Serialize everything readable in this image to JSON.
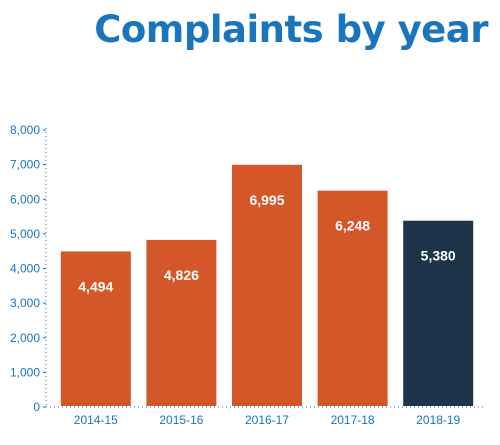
{
  "colors": {
    "title": "#1a75bc",
    "bar": "#d4572a",
    "highlight_bar": "#1c3349",
    "axis": "#1a75bc",
    "tick_text": "#1a75bc",
    "category_text": "#1a75bc",
    "value_text": "#ffffff"
  },
  "chart_data": {
    "type": "bar",
    "title": "Complaints by year",
    "xlabel": "",
    "ylabel": "",
    "categories": [
      "2014-15",
      "2015-16",
      "2016-17",
      "2017-18",
      "2018-19"
    ],
    "values": [
      4494,
      4826,
      6995,
      6248,
      5380
    ],
    "value_labels": [
      "4,494",
      "4,826",
      "6,995",
      "6,248",
      "5,380"
    ],
    "highlight_index": 4,
    "ylim": [
      0,
      8000
    ],
    "yticks": [
      0,
      1000,
      2000,
      3000,
      4000,
      5000,
      6000,
      7000,
      8000
    ],
    "ytick_labels": [
      "0",
      "1,000",
      "2,000",
      "3,000",
      "4,000",
      "5,000",
      "6,000",
      "7,000",
      "8,000"
    ],
    "grid": false,
    "legend": "none"
  }
}
